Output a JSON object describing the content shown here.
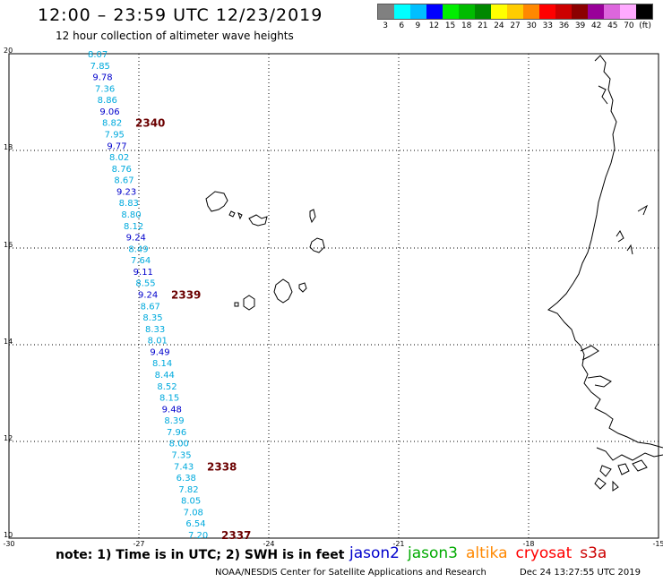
{
  "header": {
    "title": "12:00 – 23:59 UTC 12/23/2019",
    "subtitle": "12 hour collection of altimeter wave heights"
  },
  "legend": {
    "colors": [
      "#808080",
      "#00ffff",
      "#00bfff",
      "#0000ff",
      "#00ee00",
      "#00bb00",
      "#008800",
      "#ffff00",
      "#ffcc00",
      "#ff8800",
      "#ff0000",
      "#cc0000",
      "#8b0000",
      "#990099",
      "#dd66dd",
      "#ffaaff",
      "#000000"
    ],
    "labels": [
      "3",
      "6",
      "9",
      "12",
      "15",
      "18",
      "21",
      "24",
      "27",
      "30",
      "33",
      "36",
      "39",
      "42",
      "45",
      "70",
      "(ft)"
    ]
  },
  "map": {
    "lat_labels": [
      "20",
      "18",
      "16",
      "14",
      "12",
      "10"
    ],
    "lon_labels": [
      "-30",
      "-27",
      "-24",
      "-21",
      "-18",
      "-15"
    ]
  },
  "track": {
    "color_light": "#00aadd",
    "color_dark": "#0000cc",
    "values": [
      {
        "v": "8.07",
        "c": "light"
      },
      {
        "v": "7.85",
        "c": "light"
      },
      {
        "v": "9.78",
        "c": "dark"
      },
      {
        "v": "7.36",
        "c": "light"
      },
      {
        "v": "8.86",
        "c": "light"
      },
      {
        "v": "9.06",
        "c": "dark"
      },
      {
        "v": "8.82",
        "c": "light"
      },
      {
        "v": "7.95",
        "c": "light"
      },
      {
        "v": "9.77",
        "c": "dark"
      },
      {
        "v": "8.02",
        "c": "light"
      },
      {
        "v": "8.76",
        "c": "light"
      },
      {
        "v": "8.67",
        "c": "light"
      },
      {
        "v": "9.23",
        "c": "dark"
      },
      {
        "v": "8.83",
        "c": "light"
      },
      {
        "v": "8.80",
        "c": "light"
      },
      {
        "v": "8.12",
        "c": "light"
      },
      {
        "v": "9.24",
        "c": "dark"
      },
      {
        "v": "8.49",
        "c": "light"
      },
      {
        "v": "7.64",
        "c": "light"
      },
      {
        "v": "9.11",
        "c": "dark"
      },
      {
        "v": "8.55",
        "c": "light"
      },
      {
        "v": "9.24",
        "c": "dark"
      },
      {
        "v": "8.67",
        "c": "light"
      },
      {
        "v": "8.35",
        "c": "light"
      },
      {
        "v": "8.33",
        "c": "light"
      },
      {
        "v": "8.01",
        "c": "light"
      },
      {
        "v": "9.49",
        "c": "dark"
      },
      {
        "v": "8.14",
        "c": "light"
      },
      {
        "v": "8.44",
        "c": "light"
      },
      {
        "v": "8.52",
        "c": "light"
      },
      {
        "v": "8.15",
        "c": "light"
      },
      {
        "v": "9.48",
        "c": "dark"
      },
      {
        "v": "8.39",
        "c": "light"
      },
      {
        "v": "7.96",
        "c": "light"
      },
      {
        "v": "8.00",
        "c": "light"
      },
      {
        "v": "7.35",
        "c": "light"
      },
      {
        "v": "7.43",
        "c": "light"
      },
      {
        "v": "6.38",
        "c": "light"
      },
      {
        "v": "7.82",
        "c": "light"
      },
      {
        "v": "8.05",
        "c": "light"
      },
      {
        "v": "7.08",
        "c": "light"
      },
      {
        "v": "6.54",
        "c": "light"
      },
      {
        "v": "7.20",
        "c": "light"
      }
    ],
    "times": [
      {
        "t": "2340",
        "at": 6
      },
      {
        "t": "2339",
        "at": 21
      },
      {
        "t": "2338",
        "at": 36
      },
      {
        "t": "2337",
        "at": 42
      }
    ]
  },
  "footer": {
    "note": "note: 1) Time is in UTC; 2) SWH is in feet",
    "satellites": [
      {
        "name": "jason2",
        "color": "#0000cc"
      },
      {
        "name": "jason3",
        "color": "#00aa00"
      },
      {
        "name": "altika",
        "color": "#ff8800"
      },
      {
        "name": "cryosat",
        "color": "#ff0000"
      },
      {
        "name": "s3a",
        "color": "#cc0000"
      }
    ],
    "credit": "NOAA/NESDIS Center for Satellite Applications and Research",
    "stamp": "Dec 24 13:27:55 UTC 2019"
  }
}
